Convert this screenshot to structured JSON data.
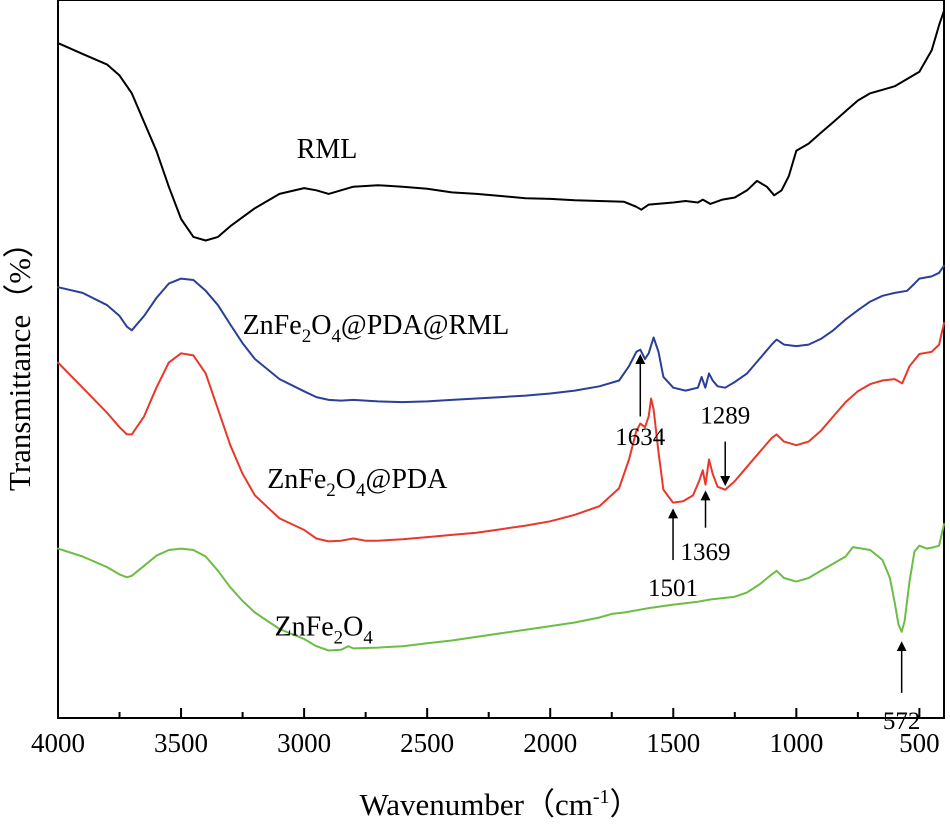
{
  "chart_data": {
    "type": "line",
    "xlabel_main": "Wavenumber",
    "xlabel_open": "（",
    "xlabel_unit": "cm",
    "xlabel_exp": "-1",
    "xlabel_close": "）",
    "ylabel": "Transmittance（%）",
    "xlim": [
      4000,
      400
    ],
    "x_reversed": true,
    "xticks": [
      4000,
      3500,
      3000,
      2500,
      2000,
      1500,
      1000,
      500
    ],
    "y_ticks_shown": false,
    "grid": false,
    "legend": "none",
    "series": [
      {
        "label_parts": [
          "RML"
        ],
        "color": "#000000",
        "points": [
          [
            4000,
            0.94
          ],
          [
            3900,
            0.925
          ],
          [
            3800,
            0.91
          ],
          [
            3750,
            0.895
          ],
          [
            3700,
            0.87
          ],
          [
            3650,
            0.83
          ],
          [
            3600,
            0.79
          ],
          [
            3550,
            0.74
          ],
          [
            3500,
            0.695
          ],
          [
            3450,
            0.67
          ],
          [
            3400,
            0.665
          ],
          [
            3350,
            0.67
          ],
          [
            3300,
            0.685
          ],
          [
            3200,
            0.71
          ],
          [
            3100,
            0.73
          ],
          [
            3000,
            0.738
          ],
          [
            2950,
            0.735
          ],
          [
            2900,
            0.73
          ],
          [
            2850,
            0.735
          ],
          [
            2800,
            0.74
          ],
          [
            2700,
            0.742
          ],
          [
            2600,
            0.74
          ],
          [
            2500,
            0.737
          ],
          [
            2400,
            0.732
          ],
          [
            2300,
            0.73
          ],
          [
            2200,
            0.727
          ],
          [
            2100,
            0.724
          ],
          [
            2000,
            0.723
          ],
          [
            1900,
            0.721
          ],
          [
            1800,
            0.72
          ],
          [
            1700,
            0.719
          ],
          [
            1650,
            0.712
          ],
          [
            1630,
            0.708
          ],
          [
            1600,
            0.715
          ],
          [
            1500,
            0.718
          ],
          [
            1450,
            0.72
          ],
          [
            1400,
            0.718
          ],
          [
            1380,
            0.722
          ],
          [
            1350,
            0.716
          ],
          [
            1300,
            0.722
          ],
          [
            1250,
            0.725
          ],
          [
            1200,
            0.735
          ],
          [
            1160,
            0.748
          ],
          [
            1120,
            0.74
          ],
          [
            1090,
            0.728
          ],
          [
            1060,
            0.735
          ],
          [
            1030,
            0.755
          ],
          [
            1000,
            0.79
          ],
          [
            950,
            0.8
          ],
          [
            900,
            0.815
          ],
          [
            850,
            0.83
          ],
          [
            800,
            0.845
          ],
          [
            750,
            0.86
          ],
          [
            700,
            0.87
          ],
          [
            650,
            0.875
          ],
          [
            600,
            0.88
          ],
          [
            550,
            0.89
          ],
          [
            500,
            0.9
          ],
          [
            450,
            0.93
          ],
          [
            420,
            0.965
          ],
          [
            400,
            0.985
          ]
        ]
      },
      {
        "label_parts": [
          "ZnFe",
          "2",
          "O",
          "4",
          "@PDA@RML"
        ],
        "color": "#2a3f98",
        "points": [
          [
            4000,
            0.6
          ],
          [
            3900,
            0.592
          ],
          [
            3800,
            0.575
          ],
          [
            3750,
            0.56
          ],
          [
            3720,
            0.545
          ],
          [
            3700,
            0.54
          ],
          [
            3650,
            0.56
          ],
          [
            3600,
            0.585
          ],
          [
            3550,
            0.605
          ],
          [
            3500,
            0.612
          ],
          [
            3450,
            0.61
          ],
          [
            3400,
            0.595
          ],
          [
            3350,
            0.575
          ],
          [
            3300,
            0.548
          ],
          [
            3250,
            0.522
          ],
          [
            3200,
            0.5
          ],
          [
            3100,
            0.472
          ],
          [
            3000,
            0.455
          ],
          [
            2950,
            0.447
          ],
          [
            2900,
            0.443
          ],
          [
            2850,
            0.442
          ],
          [
            2800,
            0.443
          ],
          [
            2700,
            0.441
          ],
          [
            2600,
            0.44
          ],
          [
            2500,
            0.441
          ],
          [
            2400,
            0.443
          ],
          [
            2300,
            0.445
          ],
          [
            2200,
            0.447
          ],
          [
            2100,
            0.449
          ],
          [
            2000,
            0.452
          ],
          [
            1900,
            0.456
          ],
          [
            1800,
            0.462
          ],
          [
            1720,
            0.47
          ],
          [
            1680,
            0.49
          ],
          [
            1650,
            0.51
          ],
          [
            1634,
            0.513
          ],
          [
            1615,
            0.5
          ],
          [
            1600,
            0.508
          ],
          [
            1580,
            0.53
          ],
          [
            1560,
            0.51
          ],
          [
            1540,
            0.475
          ],
          [
            1500,
            0.46
          ],
          [
            1450,
            0.456
          ],
          [
            1400,
            0.46
          ],
          [
            1385,
            0.475
          ],
          [
            1370,
            0.46
          ],
          [
            1355,
            0.48
          ],
          [
            1340,
            0.47
          ],
          [
            1320,
            0.462
          ],
          [
            1289,
            0.46
          ],
          [
            1250,
            0.468
          ],
          [
            1200,
            0.48
          ],
          [
            1150,
            0.5
          ],
          [
            1100,
            0.52
          ],
          [
            1080,
            0.527
          ],
          [
            1050,
            0.52
          ],
          [
            1000,
            0.518
          ],
          [
            950,
            0.52
          ],
          [
            900,
            0.528
          ],
          [
            850,
            0.54
          ],
          [
            800,
            0.555
          ],
          [
            750,
            0.568
          ],
          [
            700,
            0.58
          ],
          [
            650,
            0.588
          ],
          [
            600,
            0.592
          ],
          [
            550,
            0.595
          ],
          [
            520,
            0.605
          ],
          [
            500,
            0.612
          ],
          [
            450,
            0.615
          ],
          [
            420,
            0.62
          ],
          [
            400,
            0.63
          ]
        ]
      },
      {
        "label_parts": [
          "ZnFe",
          "2",
          "O",
          "4",
          "@PDA"
        ],
        "color": "#e8382a",
        "points": [
          [
            4000,
            0.495
          ],
          [
            3900,
            0.46
          ],
          [
            3800,
            0.425
          ],
          [
            3750,
            0.405
          ],
          [
            3720,
            0.395
          ],
          [
            3700,
            0.395
          ],
          [
            3650,
            0.42
          ],
          [
            3600,
            0.46
          ],
          [
            3550,
            0.495
          ],
          [
            3500,
            0.508
          ],
          [
            3450,
            0.505
          ],
          [
            3400,
            0.48
          ],
          [
            3350,
            0.43
          ],
          [
            3300,
            0.38
          ],
          [
            3250,
            0.34
          ],
          [
            3200,
            0.31
          ],
          [
            3100,
            0.278
          ],
          [
            3000,
            0.262
          ],
          [
            2950,
            0.25
          ],
          [
            2900,
            0.246
          ],
          [
            2850,
            0.247
          ],
          [
            2800,
            0.25
          ],
          [
            2750,
            0.247
          ],
          [
            2700,
            0.247
          ],
          [
            2600,
            0.249
          ],
          [
            2500,
            0.252
          ],
          [
            2400,
            0.255
          ],
          [
            2300,
            0.258
          ],
          [
            2200,
            0.263
          ],
          [
            2100,
            0.268
          ],
          [
            2000,
            0.274
          ],
          [
            1900,
            0.283
          ],
          [
            1800,
            0.295
          ],
          [
            1720,
            0.32
          ],
          [
            1680,
            0.36
          ],
          [
            1650,
            0.4
          ],
          [
            1634,
            0.41
          ],
          [
            1615,
            0.405
          ],
          [
            1600,
            0.42
          ],
          [
            1590,
            0.445
          ],
          [
            1580,
            0.43
          ],
          [
            1560,
            0.37
          ],
          [
            1540,
            0.318
          ],
          [
            1501,
            0.3
          ],
          [
            1460,
            0.302
          ],
          [
            1420,
            0.31
          ],
          [
            1395,
            0.33
          ],
          [
            1380,
            0.345
          ],
          [
            1369,
            0.325
          ],
          [
            1355,
            0.36
          ],
          [
            1340,
            0.34
          ],
          [
            1320,
            0.322
          ],
          [
            1289,
            0.318
          ],
          [
            1250,
            0.33
          ],
          [
            1200,
            0.35
          ],
          [
            1150,
            0.37
          ],
          [
            1100,
            0.39
          ],
          [
            1080,
            0.395
          ],
          [
            1050,
            0.385
          ],
          [
            1000,
            0.38
          ],
          [
            950,
            0.385
          ],
          [
            900,
            0.4
          ],
          [
            850,
            0.42
          ],
          [
            800,
            0.44
          ],
          [
            750,
            0.455
          ],
          [
            700,
            0.465
          ],
          [
            650,
            0.47
          ],
          [
            600,
            0.472
          ],
          [
            570,
            0.466
          ],
          [
            540,
            0.49
          ],
          [
            500,
            0.507
          ],
          [
            450,
            0.51
          ],
          [
            420,
            0.52
          ],
          [
            400,
            0.55
          ]
        ]
      },
      {
        "label_parts": [
          "ZnFe",
          "2",
          "O",
          "4"
        ],
        "color": "#6cbd45",
        "points": [
          [
            4000,
            0.236
          ],
          [
            3900,
            0.225
          ],
          [
            3800,
            0.21
          ],
          [
            3750,
            0.2
          ],
          [
            3720,
            0.196
          ],
          [
            3700,
            0.198
          ],
          [
            3650,
            0.212
          ],
          [
            3600,
            0.226
          ],
          [
            3550,
            0.234
          ],
          [
            3500,
            0.236
          ],
          [
            3450,
            0.234
          ],
          [
            3400,
            0.225
          ],
          [
            3350,
            0.205
          ],
          [
            3300,
            0.182
          ],
          [
            3250,
            0.163
          ],
          [
            3200,
            0.147
          ],
          [
            3100,
            0.124
          ],
          [
            3000,
            0.11
          ],
          [
            2950,
            0.1
          ],
          [
            2900,
            0.094
          ],
          [
            2850,
            0.095
          ],
          [
            2820,
            0.1
          ],
          [
            2800,
            0.097
          ],
          [
            2700,
            0.098
          ],
          [
            2600,
            0.1
          ],
          [
            2500,
            0.104
          ],
          [
            2400,
            0.108
          ],
          [
            2300,
            0.113
          ],
          [
            2200,
            0.118
          ],
          [
            2100,
            0.123
          ],
          [
            2000,
            0.128
          ],
          [
            1900,
            0.133
          ],
          [
            1800,
            0.14
          ],
          [
            1750,
            0.145
          ],
          [
            1700,
            0.147
          ],
          [
            1650,
            0.15
          ],
          [
            1600,
            0.153
          ],
          [
            1500,
            0.158
          ],
          [
            1400,
            0.162
          ],
          [
            1350,
            0.165
          ],
          [
            1300,
            0.167
          ],
          [
            1250,
            0.169
          ],
          [
            1200,
            0.175
          ],
          [
            1150,
            0.186
          ],
          [
            1100,
            0.2
          ],
          [
            1080,
            0.205
          ],
          [
            1050,
            0.195
          ],
          [
            1000,
            0.19
          ],
          [
            950,
            0.195
          ],
          [
            900,
            0.205
          ],
          [
            850,
            0.215
          ],
          [
            800,
            0.225
          ],
          [
            770,
            0.238
          ],
          [
            700,
            0.234
          ],
          [
            650,
            0.22
          ],
          [
            620,
            0.195
          ],
          [
            600,
            0.16
          ],
          [
            585,
            0.13
          ],
          [
            572,
            0.12
          ],
          [
            560,
            0.135
          ],
          [
            540,
            0.19
          ],
          [
            520,
            0.232
          ],
          [
            500,
            0.24
          ],
          [
            470,
            0.236
          ],
          [
            440,
            0.238
          ],
          [
            420,
            0.24
          ],
          [
            400,
            0.27
          ]
        ]
      }
    ],
    "series_labels": [
      {
        "series": 0,
        "x": 3030,
        "y": 0.78
      },
      {
        "series": 1,
        "x": 3250,
        "y": 0.535
      },
      {
        "series": 2,
        "x": 3150,
        "y": 0.32
      },
      {
        "series": 3,
        "x": 3120,
        "y": 0.115
      }
    ],
    "annotations": [
      {
        "label": "1634",
        "x": 1634,
        "arrow_from_y": 0.42,
        "arrow_to_y": 0.5,
        "label_y": 0.38,
        "color": "#000000"
      },
      {
        "label": "1501",
        "x": 1501,
        "arrow_from_y": 0.22,
        "arrow_to_y": 0.285,
        "label_y": 0.17,
        "color": "#000000"
      },
      {
        "label": "1369",
        "x": 1369,
        "arrow_from_y": 0.265,
        "arrow_to_y": 0.31,
        "label_y": 0.22,
        "color": "#000000"
      },
      {
        "label": "1289",
        "x": 1289,
        "arrow_from_y": 0.385,
        "arrow_to_y": 0.33,
        "label_y": 0.41,
        "color": "#000000"
      },
      {
        "label": "572",
        "x": 572,
        "arrow_from_y": 0.035,
        "arrow_to_y": 0.1,
        "label_y": -0.015,
        "color": "#000000"
      }
    ]
  }
}
